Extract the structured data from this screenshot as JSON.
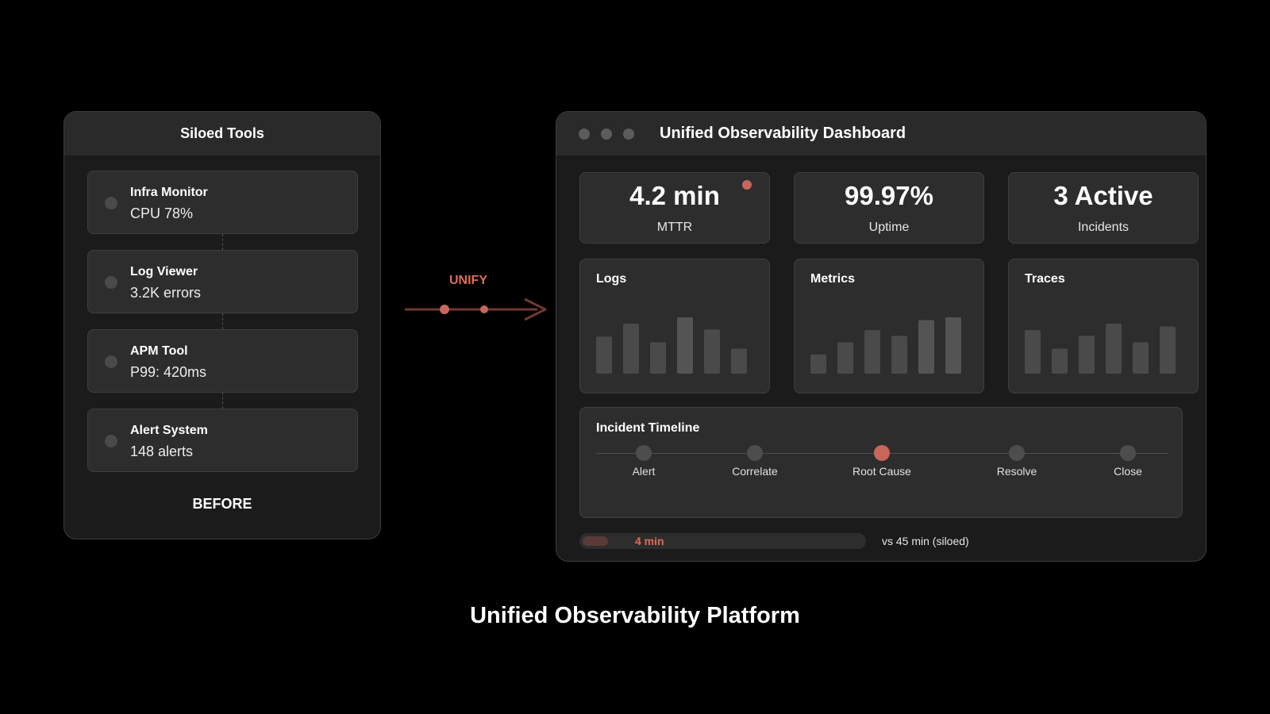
{
  "siloed": {
    "title": "Siloed Tools",
    "tools": [
      {
        "name": "Infra Monitor",
        "value": "CPU 78%"
      },
      {
        "name": "Log Viewer",
        "value": "3.2K errors"
      },
      {
        "name": "APM Tool",
        "value": "P99: 420ms"
      },
      {
        "name": "Alert System",
        "value": "148 alerts"
      }
    ],
    "footer": "BEFORE"
  },
  "arrow": {
    "label": "UNIFY",
    "color": "#e06a55"
  },
  "dashboard": {
    "title": "Unified Observability Dashboard",
    "stats": [
      {
        "value": "4.2 min",
        "label": "MTTR"
      },
      {
        "value": "99.97%",
        "label": "Uptime"
      },
      {
        "value": "3 Active",
        "label": "Incidents"
      }
    ],
    "timeline": {
      "title": "Incident Timeline",
      "steps": [
        "Alert",
        "Correlate",
        "Root Cause",
        "Resolve",
        "Close"
      ],
      "active_index": 2
    },
    "progress": {
      "label": "4 min",
      "fraction": 0.089,
      "comparison": "vs 45 min (siloed)"
    }
  },
  "chart_data": [
    {
      "type": "bar",
      "title": "Logs",
      "values": [
        52,
        70,
        44,
        79,
        62,
        35
      ]
    },
    {
      "type": "bar",
      "title": "Metrics",
      "values": [
        27,
        44,
        61,
        53,
        75,
        79
      ]
    },
    {
      "type": "bar",
      "title": "Traces",
      "values": [
        61,
        35,
        53,
        70,
        44,
        66
      ]
    }
  ],
  "caption": "Unified Observability Platform",
  "colors": {
    "accent": "#c9665a",
    "bar": "#4a4a4a",
    "bar_light": "#545454"
  }
}
